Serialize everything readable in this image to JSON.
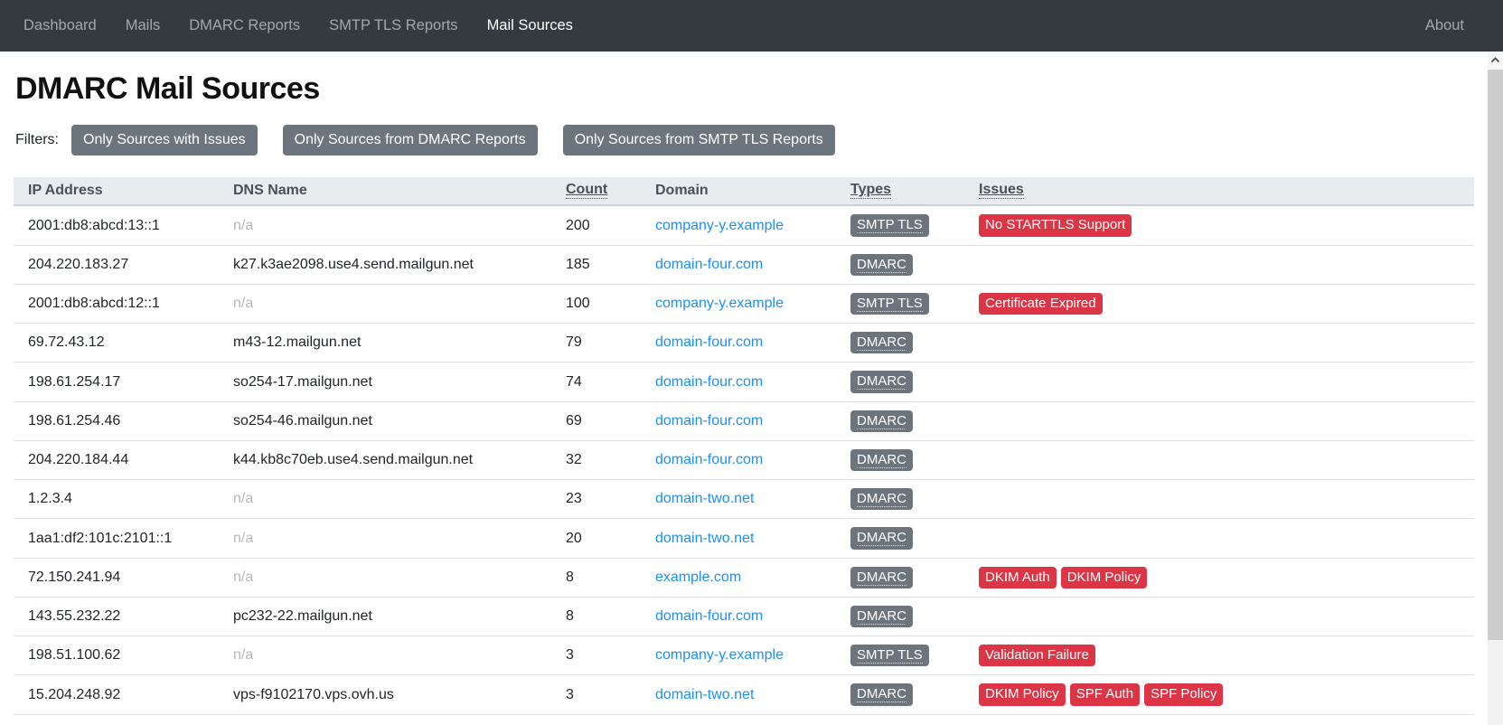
{
  "navbar": {
    "items": [
      {
        "label": "Dashboard",
        "active": false
      },
      {
        "label": "Mails",
        "active": false
      },
      {
        "label": "DMARC Reports",
        "active": false
      },
      {
        "label": "SMTP TLS Reports",
        "active": false
      },
      {
        "label": "Mail Sources",
        "active": true
      }
    ],
    "about_label": "About"
  },
  "page": {
    "title": "DMARC Mail Sources",
    "filters_label": "Filters:",
    "filter_buttons": [
      "Only Sources with Issues",
      "Only Sources from DMARC Reports",
      "Only Sources from SMTP TLS Reports"
    ]
  },
  "table": {
    "na_text": "n/a",
    "columns": [
      {
        "label": "IP Address",
        "sortable": false
      },
      {
        "label": "DNS Name",
        "sortable": false
      },
      {
        "label": "Count",
        "sortable": true
      },
      {
        "label": "Domain",
        "sortable": false
      },
      {
        "label": "Types",
        "sortable": true
      },
      {
        "label": "Issues",
        "sortable": true
      }
    ],
    "rows": [
      {
        "ip": "2001:db8:abcd:13::1",
        "dns": "n/a",
        "count": "200",
        "domain": "company-y.example",
        "types": [
          "SMTP TLS"
        ],
        "issues": [
          "No STARTTLS Support"
        ]
      },
      {
        "ip": "204.220.183.27",
        "dns": "k27.k3ae2098.use4.send.mailgun.net",
        "count": "185",
        "domain": "domain-four.com",
        "types": [
          "DMARC"
        ],
        "issues": []
      },
      {
        "ip": "2001:db8:abcd:12::1",
        "dns": "n/a",
        "count": "100",
        "domain": "company-y.example",
        "types": [
          "SMTP TLS"
        ],
        "issues": [
          "Certificate Expired"
        ]
      },
      {
        "ip": "69.72.43.12",
        "dns": "m43-12.mailgun.net",
        "count": "79",
        "domain": "domain-four.com",
        "types": [
          "DMARC"
        ],
        "issues": []
      },
      {
        "ip": "198.61.254.17",
        "dns": "so254-17.mailgun.net",
        "count": "74",
        "domain": "domain-four.com",
        "types": [
          "DMARC"
        ],
        "issues": []
      },
      {
        "ip": "198.61.254.46",
        "dns": "so254-46.mailgun.net",
        "count": "69",
        "domain": "domain-four.com",
        "types": [
          "DMARC"
        ],
        "issues": []
      },
      {
        "ip": "204.220.184.44",
        "dns": "k44.kb8c70eb.use4.send.mailgun.net",
        "count": "32",
        "domain": "domain-four.com",
        "types": [
          "DMARC"
        ],
        "issues": []
      },
      {
        "ip": "1.2.3.4",
        "dns": "n/a",
        "count": "23",
        "domain": "domain-two.net",
        "types": [
          "DMARC"
        ],
        "issues": []
      },
      {
        "ip": "1aa1:df2:101c:2101::1",
        "dns": "n/a",
        "count": "20",
        "domain": "domain-two.net",
        "types": [
          "DMARC"
        ],
        "issues": []
      },
      {
        "ip": "72.150.241.94",
        "dns": "n/a",
        "count": "8",
        "domain": "example.com",
        "types": [
          "DMARC"
        ],
        "issues": [
          "DKIM Auth",
          "DKIM Policy"
        ]
      },
      {
        "ip": "143.55.232.22",
        "dns": "pc232-22.mailgun.net",
        "count": "8",
        "domain": "domain-four.com",
        "types": [
          "DMARC"
        ],
        "issues": []
      },
      {
        "ip": "198.51.100.62",
        "dns": "n/a",
        "count": "3",
        "domain": "company-y.example",
        "types": [
          "SMTP TLS"
        ],
        "issues": [
          "Validation Failure"
        ]
      },
      {
        "ip": "15.204.248.92",
        "dns": "vps-f9102170.vps.ovh.us",
        "count": "3",
        "domain": "domain-two.net",
        "types": [
          "DMARC"
        ],
        "issues": [
          "DKIM Policy",
          "SPF Auth",
          "SPF Policy"
        ]
      }
    ]
  },
  "icons": {
    "scroll_up": "chevron-up-icon"
  },
  "colors": {
    "navbar_bg": "#343a40",
    "link_blue": "#1e8ff2",
    "badge_gray": "#6c757d",
    "badge_red": "#dc3545",
    "header_bg": "#e9ecef",
    "border": "#dee2e6",
    "muted_text": "#b4b9be",
    "btn_gray": "#6c757d"
  }
}
